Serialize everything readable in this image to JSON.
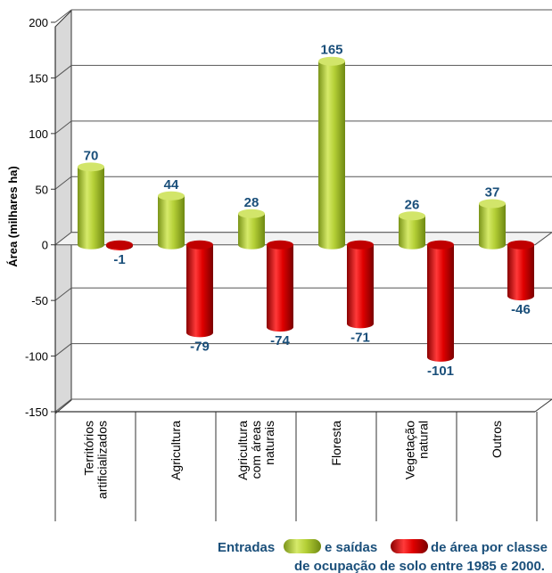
{
  "chart_data": {
    "type": "bar",
    "categories": [
      [
        "Territórios",
        "artificializados"
      ],
      [
        "Agricultura"
      ],
      [
        "Agricultura",
        "com áreas",
        "naturais"
      ],
      [
        "Floresta"
      ],
      [
        "Vegetação",
        "natural"
      ],
      [
        "Outros"
      ]
    ],
    "series": [
      {
        "key": "entradas",
        "values": [
          70,
          44,
          28,
          165,
          26,
          37
        ],
        "color": "#a8c42a"
      },
      {
        "key": "saidas",
        "values": [
          -1,
          -79,
          -74,
          -71,
          -101,
          -46
        ],
        "color": "#d40000"
      }
    ],
    "data_labels": {
      "entradas": [
        "70",
        "44",
        "28",
        "165",
        "26",
        "37"
      ],
      "saidas": [
        "-1",
        "-79",
        "-74",
        "-71",
        "-101",
        "-46"
      ]
    },
    "ylabel": "Área (milhares ha)",
    "ylim": [
      -150,
      200
    ],
    "yticks": [
      -150,
      -100,
      -50,
      0,
      50,
      100,
      150,
      200
    ],
    "grid": true,
    "legend": {
      "placement": "bottom-right",
      "line1_a": "Entradas",
      "line1_b": "e saídas",
      "line1_c": "de área por classe",
      "line2": "de ocupação de solo entre 1985 e 2000."
    }
  }
}
